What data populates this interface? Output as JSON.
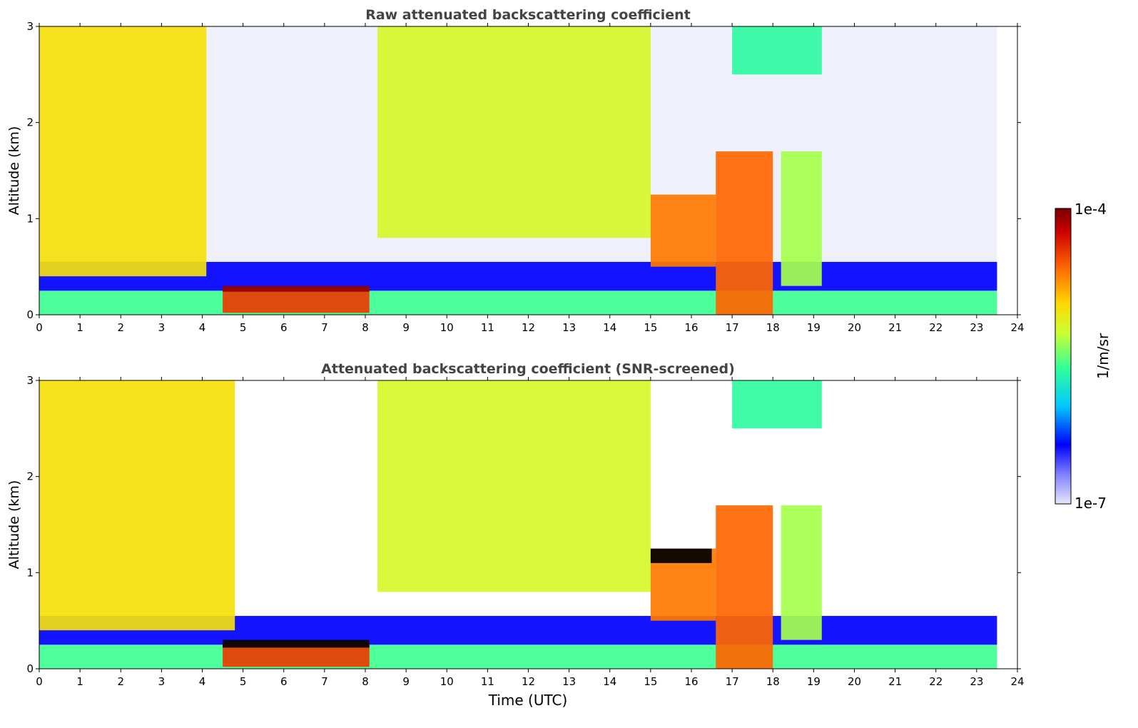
{
  "chart_data": [
    {
      "type": "heatmap",
      "title": "Raw attenuated backscattering coefficient",
      "xlabel": "",
      "ylabel": "Altitude (km)",
      "xlim": [
        0,
        24
      ],
      "ylim": [
        0,
        3
      ],
      "x_ticks": [
        "0",
        "1",
        "2",
        "3",
        "4",
        "5",
        "6",
        "7",
        "8",
        "9",
        "10",
        "11",
        "12",
        "13",
        "14",
        "15",
        "16",
        "17",
        "18",
        "19",
        "20",
        "21",
        "22",
        "23",
        "24"
      ],
      "y_ticks": [
        "0",
        "1",
        "2",
        "3"
      ],
      "data_end_time": 23.5,
      "screened": false,
      "features": [
        {
          "name": "surface aerosol layer",
          "start": 0,
          "end": 23.5,
          "bottom": 0.0,
          "top": 0.25,
          "level": 0.47
        },
        {
          "name": "elevated layer",
          "start": 0,
          "end": 23.5,
          "bottom": 0.25,
          "top": 0.55,
          "level": 0.2
        },
        {
          "name": "dense aerosol band",
          "start": 4.5,
          "end": 8.1,
          "bottom": 0.02,
          "top": 0.28,
          "level": 0.85
        },
        {
          "name": "thin layer top",
          "start": 4.5,
          "end": 8.1,
          "bottom": 0.24,
          "top": 0.3,
          "level": 0.98
        },
        {
          "name": "morning cloud 00-04",
          "start": 0,
          "end": 4.1,
          "bottom": 0.4,
          "top": 3.0,
          "level": 0.66
        },
        {
          "name": "cloud 08-15",
          "start": 8.3,
          "end": 15.0,
          "bottom": 0.8,
          "top": 3.0,
          "level": 0.6
        },
        {
          "name": "cloud 15-17",
          "start": 15.0,
          "end": 16.6,
          "bottom": 0.5,
          "top": 1.25,
          "level": 0.78
        },
        {
          "name": "cloud 16.5-18.2",
          "start": 16.6,
          "end": 18.0,
          "bottom": 0.0,
          "top": 1.7,
          "level": 0.8
        },
        {
          "name": "cloud 18.3-19.2",
          "start": 18.2,
          "end": 19.2,
          "bottom": 0.3,
          "top": 1.7,
          "level": 0.55
        },
        {
          "name": "cloud 17-19 high",
          "start": 17.0,
          "end": 19.2,
          "bottom": 2.5,
          "top": 3.0,
          "level": 0.45
        }
      ]
    },
    {
      "type": "heatmap",
      "title": "Attenuated backscattering coefficient (SNR-screened)",
      "xlabel": "Time (UTC)",
      "ylabel": "Altitude (km)",
      "xlim": [
        0,
        24
      ],
      "ylim": [
        0,
        3
      ],
      "x_ticks": [
        "0",
        "1",
        "2",
        "3",
        "4",
        "5",
        "6",
        "7",
        "8",
        "9",
        "10",
        "11",
        "12",
        "13",
        "14",
        "15",
        "16",
        "17",
        "18",
        "19",
        "20",
        "21",
        "22",
        "23",
        "24"
      ],
      "y_ticks": [
        "0",
        "1",
        "2",
        "3"
      ],
      "data_end_time": 23.5,
      "screened": true,
      "features": [
        {
          "name": "surface aerosol layer",
          "start": 0,
          "end": 23.5,
          "bottom": 0.0,
          "top": 0.25,
          "level": 0.47
        },
        {
          "name": "elevated layer",
          "start": 0,
          "end": 23.5,
          "bottom": 0.25,
          "top": 0.55,
          "level": 0.2
        },
        {
          "name": "dense aerosol band",
          "start": 4.5,
          "end": 8.1,
          "bottom": 0.02,
          "top": 0.28,
          "level": 0.85
        },
        {
          "name": "saturated layer top",
          "start": 4.5,
          "end": 8.1,
          "bottom": 0.22,
          "top": 0.3,
          "level": -1
        },
        {
          "name": "morning cloud 00-04",
          "start": 0,
          "end": 4.8,
          "bottom": 0.4,
          "top": 3.0,
          "level": 0.66
        },
        {
          "name": "cloud 08-15",
          "start": 8.3,
          "end": 15.0,
          "bottom": 0.8,
          "top": 3.0,
          "level": 0.6
        },
        {
          "name": "cloud 15-17",
          "start": 15.0,
          "end": 16.6,
          "bottom": 0.5,
          "top": 1.25,
          "level": 0.78
        },
        {
          "name": "saturated 15-16.5",
          "start": 15.0,
          "end": 16.5,
          "bottom": 1.1,
          "top": 1.25,
          "level": -1
        },
        {
          "name": "cloud 16.5-18.2",
          "start": 16.6,
          "end": 18.0,
          "bottom": 0.0,
          "top": 1.7,
          "level": 0.8
        },
        {
          "name": "cloud 18.3-19.2",
          "start": 18.2,
          "end": 19.2,
          "bottom": 0.3,
          "top": 1.7,
          "level": 0.55
        },
        {
          "name": "cloud 17-19 high",
          "start": 17.0,
          "end": 19.2,
          "bottom": 2.5,
          "top": 3.0,
          "level": 0.45
        }
      ]
    }
  ],
  "colorbar": {
    "label": "1/m/sr",
    "max_label": "1e-4",
    "min_label": "1e-7",
    "colormap": [
      "#e6e6fa",
      "#0000ff",
      "#00c8ff",
      "#33ff99",
      "#ccff33",
      "#ffd700",
      "#ff6600",
      "#cc0000",
      "#7a0000"
    ],
    "screened_saturation_color": "#000000"
  }
}
